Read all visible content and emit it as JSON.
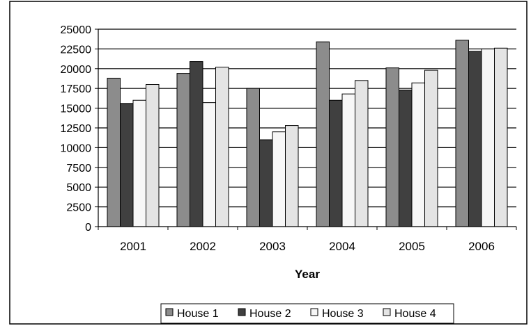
{
  "chart_data": {
    "type": "bar",
    "categories": [
      "2001",
      "2002",
      "2003",
      "2004",
      "2005",
      "2006"
    ],
    "series": [
      {
        "name": "House 1",
        "values": [
          18800,
          19400,
          17500,
          23400,
          20100,
          23600
        ],
        "color": "#8c8c8c"
      },
      {
        "name": "House 2",
        "values": [
          15600,
          20900,
          11000,
          16000,
          17300,
          22200
        ],
        "color": "#404040"
      },
      {
        "name": "House 3",
        "values": [
          16000,
          15700,
          12000,
          16800,
          18200,
          22500
        ],
        "color": "#f7f7f7"
      },
      {
        "name": "House 4",
        "values": [
          18000,
          20200,
          12800,
          18500,
          19800,
          22600
        ],
        "color": "#e4e4e4"
      }
    ],
    "yticks": [
      "0",
      "2500",
      "5000",
      "7500",
      "10000",
      "12500",
      "15000",
      "17500",
      "20000",
      "22500",
      "25000"
    ],
    "ylim": [
      0,
      25000
    ],
    "xlabel": "Year",
    "ylabel": "",
    "title": "",
    "grid": true,
    "legend_position": "bottom"
  }
}
